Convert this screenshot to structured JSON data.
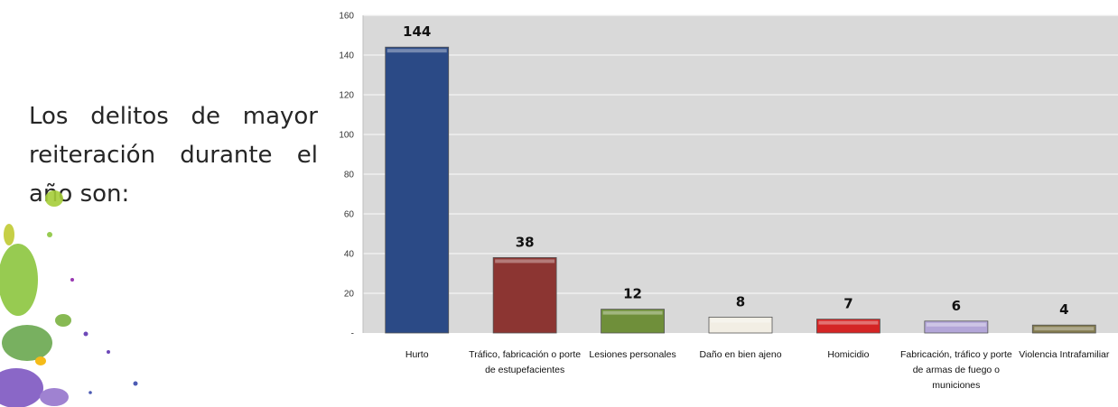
{
  "text": {
    "intro": "Los delitos de mayor reiteración durante el año son:"
  },
  "chart_data": {
    "type": "bar",
    "categories": [
      "Hurto",
      "Tráfico, fabricación o porte de estupefacientes",
      "Lesiones personales",
      "Daño en bien ajeno",
      "Homicidio",
      "Fabricación, tráfico y porte de armas de fuego o municiones",
      "Violencia Intrafamiliar"
    ],
    "category_lines": [
      [
        "Hurto"
      ],
      [
        "Tráfico, fabricación o porte",
        "de estupefacientes"
      ],
      [
        "Lesiones personales"
      ],
      [
        "Daño en bien ajeno"
      ],
      [
        "Homicidio"
      ],
      [
        "Fabricación, tráfico y porte",
        "de armas de fuego o",
        "municiones"
      ],
      [
        "Violencia Intrafamiliar"
      ]
    ],
    "values": [
      144,
      38,
      12,
      8,
      7,
      6,
      4
    ],
    "colors": [
      "#2b4a86",
      "#8c3532",
      "#6f8f3a",
      "#f2eee4",
      "#d42424",
      "#b3a6d8",
      "#827a4e"
    ],
    "title": "",
    "xlabel": "",
    "ylabel": "",
    "ylim": [
      0,
      160
    ],
    "yticks": [
      0,
      20,
      40,
      60,
      80,
      100,
      120,
      140,
      160
    ],
    "ytick_labels": [
      "-",
      "20",
      "40",
      "60",
      "80",
      "100",
      "120",
      "140",
      "160"
    ],
    "grid": true,
    "plot_background": "#d9d9d9"
  }
}
